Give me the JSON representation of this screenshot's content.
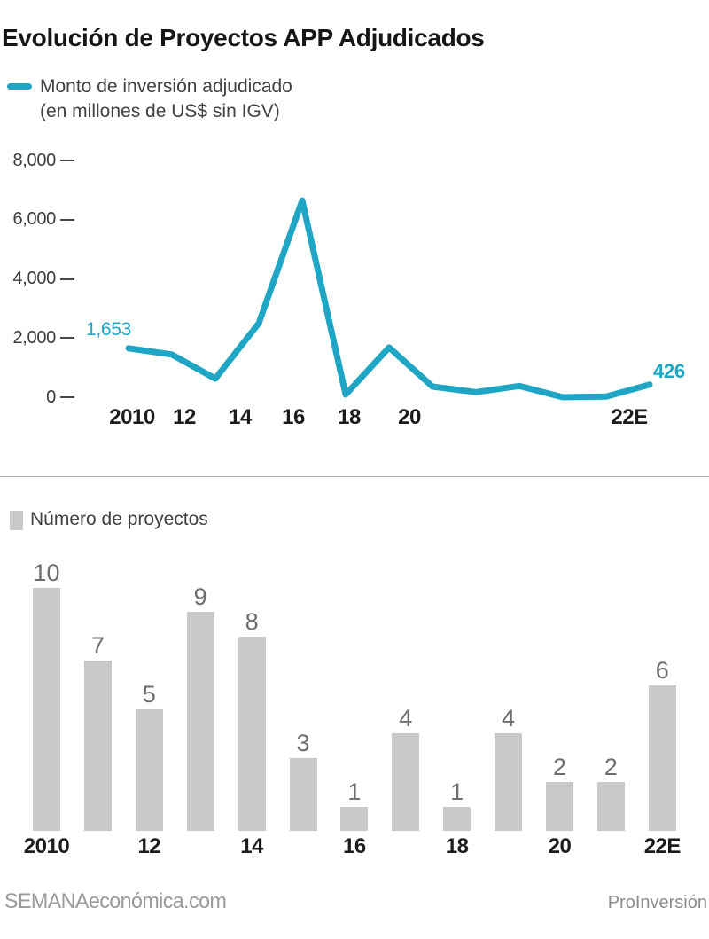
{
  "title": "Evolución de Proyectos APP Adjudicados",
  "line_section": {
    "legend_label": "Monto de inversión adjudicado",
    "legend_sublabel": "(en millones de US$ sin IGV)",
    "first_value_label": "1,653",
    "last_value_label": "426"
  },
  "bar_section": {
    "legend_label": "Número de proyectos"
  },
  "footer": {
    "left": "SEMANAeconómica.com",
    "right": "ProInversión"
  },
  "colors": {
    "line": "#1fa6c5",
    "bar_fill": "#c9c9c9",
    "bar_value_label": "#6e6e6e",
    "axis_text": "#3d3d3d",
    "year_text": "#1c1c1c",
    "footer_text": "#9a9a9a"
  },
  "chart_data": [
    {
      "type": "line",
      "title": "Monto de inversión adjudicado (en millones de US$ sin IGV)",
      "x": [
        "2010",
        "11",
        "12",
        "13",
        "14",
        "15",
        "16",
        "17",
        "18",
        "19",
        "20",
        "21",
        "22E"
      ],
      "values": [
        1653,
        1440,
        630,
        2500,
        6650,
        90,
        1680,
        360,
        170,
        380,
        0,
        20,
        426
      ],
      "x_tick_labels": [
        "2010",
        "12",
        "14",
        "16",
        "18",
        "20",
        "22E"
      ],
      "y_ticks": [
        0,
        2000,
        4000,
        6000,
        8000
      ],
      "y_tick_labels": [
        "0",
        "2,000",
        "4,000",
        "6,000",
        "8,000"
      ],
      "ylim": [
        0,
        8000
      ],
      "grid": false,
      "legend_position": "top-left",
      "annotations": [
        {
          "x": "2010",
          "text": "1,653"
        },
        {
          "x": "22E",
          "text": "426"
        }
      ],
      "color": "#1fa6c5"
    },
    {
      "type": "bar",
      "title": "Número de proyectos",
      "categories": [
        "2010",
        "11",
        "12",
        "13",
        "14",
        "15",
        "16",
        "17",
        "18",
        "19",
        "20",
        "21",
        "22E"
      ],
      "values": [
        10,
        7,
        5,
        9,
        8,
        3,
        1,
        4,
        1,
        4,
        2,
        2,
        6
      ],
      "x_tick_labels": [
        "2010",
        "12",
        "14",
        "16",
        "18",
        "20",
        "22E"
      ],
      "ylim": [
        0,
        10
      ],
      "grid": false,
      "data_labels": true,
      "bar_color": "#c9c9c9"
    }
  ]
}
